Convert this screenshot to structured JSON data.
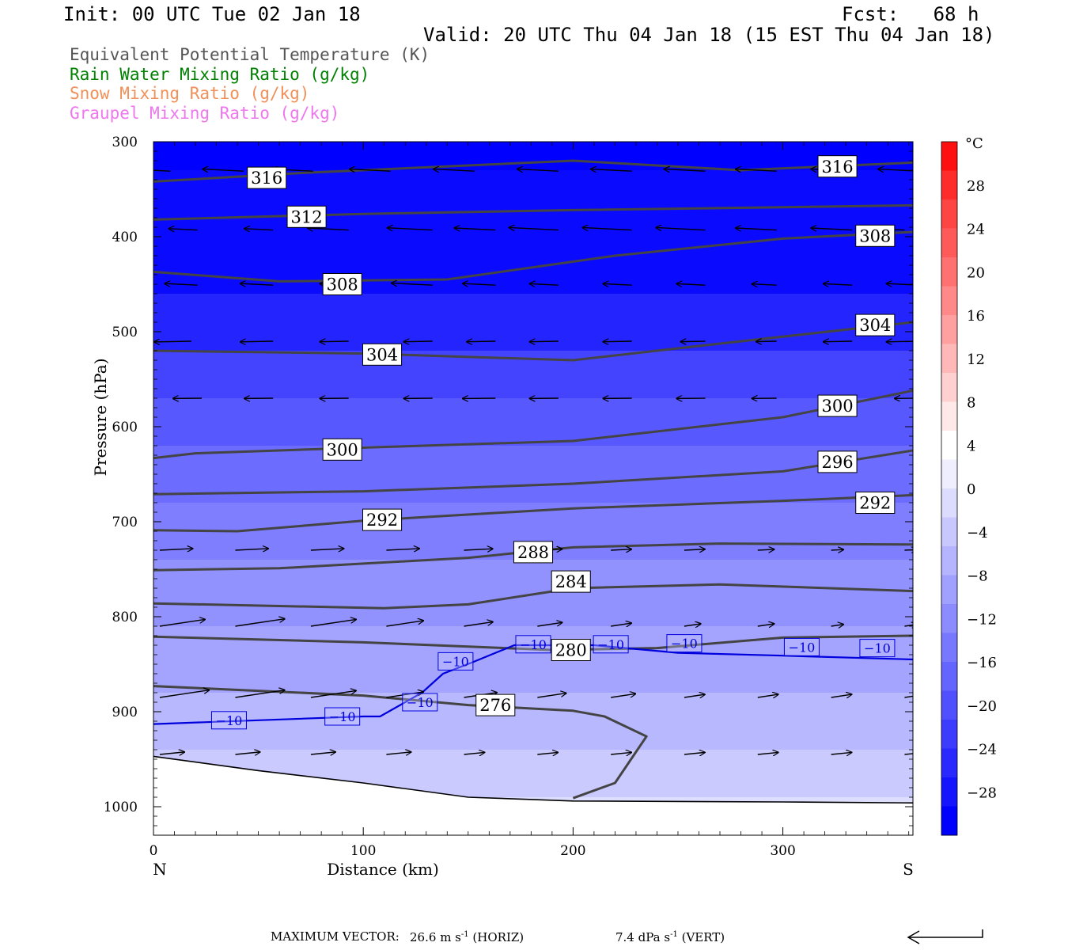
{
  "header": {
    "init": "Init: 00 UTC Tue 02 Jan 18",
    "fcst": "Fcst:   68 h",
    "valid": "Valid: 20 UTC Thu 04 Jan 18 (15 EST Thu 04 Jan 18)"
  },
  "legend": [
    {
      "label": "Equivalent Potential Temperature (K)",
      "color": "#555555"
    },
    {
      "label": "Rain Water Mixing Ratio (g/kg)",
      "color": "#008000"
    },
    {
      "label": "Snow Mixing Ratio (g/kg)",
      "color": "#f0905a"
    },
    {
      "label": "Graupel Mixing Ratio (g/kg)",
      "color": "#ee77ee"
    }
  ],
  "footer": {
    "max_vector_label": "MAXIMUM VECTOR:",
    "horiz_value": "26.6",
    "horiz_units": "m s",
    "horiz_exp": "-1",
    "horiz_tag": "(HORIZ)",
    "vert_value": "7.4",
    "vert_units": "dPa s",
    "vert_exp": "-1",
    "vert_tag": "(VERT)"
  },
  "chart_data": {
    "type": "cross-section",
    "xlabel": "Distance (km)",
    "ylabel": "Pressure (hPa)",
    "xlim": [
      0,
      362
    ],
    "ylim": [
      300,
      1030
    ],
    "y_scale": "linear, inverted",
    "x_ticks": [
      0,
      100,
      200,
      300
    ],
    "y_ticks": [
      300,
      400,
      500,
      600,
      700,
      800,
      900,
      1000
    ],
    "endpoint_left": "N",
    "endpoint_right": "S",
    "colorbar": {
      "unit": "°C",
      "tick_labels": [
        "28",
        "24",
        "20",
        "16",
        "12",
        "8",
        "4",
        "0",
        "−4",
        "−8",
        "−12",
        "−16",
        "−20",
        "−24",
        "−28"
      ],
      "colors": [
        "#ff1010",
        "#ff2c2c",
        "#ff4444",
        "#ff5a5a",
        "#ff7070",
        "#ff8888",
        "#ffa0a0",
        "#ffb8b8",
        "#ffd0d0",
        "#ffe8e8",
        "#ffffff",
        "#eeeeff",
        "#dcdcff",
        "#c8c8ff",
        "#b4b4ff",
        "#a0a0ff",
        "#8c8cff",
        "#7878ff",
        "#6464ff",
        "#5050ff",
        "#3c3cff",
        "#2828ff",
        "#1414ff",
        "#0000ff"
      ]
    },
    "temperature_fill": [
      {
        "level": 330,
        "color": "#0a0aff"
      },
      {
        "level": 460,
        "color": "#2424ff"
      },
      {
        "level": 520,
        "color": "#4444ff"
      },
      {
        "level": 570,
        "color": "#5858ff"
      },
      {
        "level": 620,
        "color": "#6c6cff"
      },
      {
        "level": 680,
        "color": "#7e7eff"
      },
      {
        "level": 740,
        "color": "#9292ff"
      },
      {
        "level": 810,
        "color": "#a4a4ff"
      },
      {
        "level": 880,
        "color": "#b8b8ff"
      },
      {
        "level": 940,
        "color": "#cacaff"
      },
      {
        "level": 990,
        "color": "#dedeff"
      }
    ],
    "theta_e_contours": [
      {
        "label": "316",
        "points": [
          [
            0,
            342
          ],
          [
            70,
            333
          ],
          [
            200,
            320
          ],
          [
            280,
            330
          ],
          [
            362,
            322
          ]
        ],
        "label_positions": [
          [
            54,
            338
          ],
          [
            326,
            326
          ]
        ]
      },
      {
        "label": "312",
        "points": [
          [
            0,
            382
          ],
          [
            100,
            376
          ],
          [
            200,
            372
          ],
          [
            300,
            369
          ],
          [
            362,
            367
          ]
        ],
        "label_positions": [
          [
            73,
            379
          ]
        ]
      },
      {
        "label": "308",
        "points": [
          [
            0,
            437
          ],
          [
            60,
            447
          ],
          [
            140,
            445
          ],
          [
            220,
            420
          ],
          [
            300,
            402
          ],
          [
            362,
            395
          ]
        ],
        "label_positions": [
          [
            90,
            450
          ],
          [
            344,
            399
          ]
        ]
      },
      {
        "label": "304",
        "points": [
          [
            0,
            520
          ],
          [
            100,
            523
          ],
          [
            200,
            530
          ],
          [
            260,
            515
          ],
          [
            362,
            490
          ]
        ],
        "label_positions": [
          [
            109,
            524
          ],
          [
            344,
            493
          ]
        ]
      },
      {
        "label": "300",
        "points": [
          [
            0,
            633
          ],
          [
            20,
            628
          ],
          [
            100,
            622
          ],
          [
            200,
            615
          ],
          [
            300,
            590
          ],
          [
            362,
            562
          ]
        ],
        "label_positions": [
          [
            90,
            624
          ],
          [
            326,
            578
          ]
        ]
      },
      {
        "label": "296",
        "points": [
          [
            0,
            671
          ],
          [
            100,
            668
          ],
          [
            200,
            660
          ],
          [
            300,
            647
          ],
          [
            362,
            625
          ]
        ],
        "label_positions": [
          [
            326,
            637
          ]
        ]
      },
      {
        "label": "292",
        "points": [
          [
            0,
            709
          ],
          [
            40,
            710
          ],
          [
            100,
            699
          ],
          [
            200,
            686
          ],
          [
            300,
            678
          ],
          [
            362,
            672
          ]
        ],
        "label_positions": [
          [
            109,
            698
          ],
          [
            344,
            680
          ]
        ]
      },
      {
        "label": "288",
        "points": [
          [
            0,
            751
          ],
          [
            60,
            749
          ],
          [
            150,
            738
          ],
          [
            200,
            727
          ],
          [
            270,
            723
          ],
          [
            362,
            724
          ]
        ],
        "label_positions": [
          [
            181,
            732
          ]
        ]
      },
      {
        "label": "284",
        "points": [
          [
            0,
            786
          ],
          [
            110,
            791
          ],
          [
            150,
            787
          ],
          [
            200,
            770
          ],
          [
            270,
            766
          ],
          [
            362,
            773
          ]
        ],
        "label_positions": [
          [
            199,
            763
          ]
        ]
      },
      {
        "label": "280",
        "points": [
          [
            0,
            821
          ],
          [
            100,
            827
          ],
          [
            190,
            835
          ],
          [
            240,
            833
          ],
          [
            300,
            822
          ],
          [
            362,
            820
          ]
        ],
        "label_positions": [
          [
            199,
            835
          ]
        ]
      },
      {
        "label": "276",
        "points": [
          [
            0,
            873
          ],
          [
            100,
            883
          ],
          [
            150,
            893
          ],
          [
            200,
            899
          ],
          [
            215,
            905
          ],
          [
            235,
            926
          ],
          [
            220,
            975
          ],
          [
            200,
            991
          ]
        ],
        "label_positions": [
          [
            163,
            893
          ]
        ]
      }
    ],
    "temperature_contours": [
      {
        "label": "−10",
        "color": "#0000dd",
        "points": [
          [
            0,
            913
          ],
          [
            50,
            909
          ],
          [
            100,
            905
          ],
          [
            108,
            905
          ],
          [
            128,
            880
          ],
          [
            138,
            860
          ],
          [
            152,
            848
          ],
          [
            172,
            830
          ],
          [
            210,
            830
          ],
          [
            250,
            838
          ],
          [
            300,
            841
          ],
          [
            362,
            845
          ]
        ],
        "label_positions": [
          [
            36,
            909
          ],
          [
            90,
            905
          ],
          [
            127,
            890
          ],
          [
            144,
            847
          ],
          [
            181,
            829
          ],
          [
            218,
            829
          ],
          [
            253,
            828
          ],
          [
            309,
            832
          ],
          [
            345,
            833
          ]
        ]
      }
    ],
    "terrain": {
      "points": [
        [
          0,
          947
        ],
        [
          50,
          962
        ],
        [
          100,
          975
        ],
        [
          150,
          990
        ],
        [
          200,
          994
        ],
        [
          300,
          995
        ],
        [
          362,
          996
        ]
      ]
    },
    "wind_vectors": [
      {
        "level": 331,
        "x": [
          5,
          40,
          73,
          110,
          150,
          190,
          225,
          260,
          294,
          330,
          362
        ],
        "u": -1,
        "w": -0.05,
        "len": [
          20,
          20,
          20,
          20,
          20,
          20,
          20,
          20,
          20,
          20,
          20
        ]
      },
      {
        "level": 393,
        "x": [
          18,
          54,
          90,
          130,
          160,
          190,
          225,
          260,
          294,
          330,
          355
        ],
        "u": -1,
        "w": -0.05,
        "len": [
          14,
          14,
          20,
          22,
          20,
          24,
          24,
          24,
          20,
          20,
          18
        ]
      },
      {
        "level": 451,
        "x": [
          18,
          54,
          90,
          130,
          160,
          190,
          225,
          260,
          294,
          330,
          362
        ],
        "u": -1,
        "w": -0.05,
        "len": [
          16,
          16,
          14,
          20,
          16,
          14,
          14,
          14,
          12,
          14,
          16
        ]
      },
      {
        "level": 510,
        "x": [
          15,
          54,
          90,
          130,
          160,
          190,
          225,
          260,
          294,
          330,
          362
        ],
        "u": -1,
        "w": 0.02,
        "len": [
          18,
          16,
          14,
          14,
          14,
          14,
          14,
          12,
          10,
          14,
          16
        ]
      },
      {
        "level": 570,
        "x": [
          20,
          54,
          90,
          130,
          160,
          190,
          225,
          260,
          294,
          330,
          362
        ],
        "u": -1,
        "w": 0.01,
        "len": [
          14,
          14,
          14,
          14,
          16,
          14,
          14,
          14,
          12,
          10,
          12
        ]
      },
      {
        "level": 730,
        "x": [
          0,
          36,
          72,
          108,
          145,
          180,
          215,
          250,
          285,
          320,
          355
        ],
        "u": 1,
        "w": -0.05,
        "len": [
          16,
          16,
          16,
          16,
          14,
          12,
          10,
          10,
          8,
          6,
          6
        ]
      },
      {
        "level": 810,
        "x": [
          0,
          36,
          72,
          108,
          145,
          180,
          215,
          250,
          285,
          320,
          355
        ],
        "u": 1,
        "w": -0.15,
        "len": [
          22,
          24,
          22,
          18,
          14,
          12,
          10,
          8,
          8,
          6,
          6
        ]
      },
      {
        "level": 885,
        "x": [
          0,
          36,
          72,
          108,
          145,
          180,
          215,
          250,
          285,
          320,
          355
        ],
        "u": 1,
        "w": -0.15,
        "len": [
          24,
          24,
          22,
          18,
          16,
          14,
          12,
          10,
          10,
          10,
          10
        ]
      },
      {
        "level": 945,
        "x": [
          0,
          36,
          72,
          108,
          145,
          180,
          215,
          250,
          285,
          320,
          355
        ],
        "u": 1,
        "w": -0.1,
        "len": [
          12,
          12,
          12,
          12,
          10,
          10,
          10,
          10,
          10,
          10,
          10
        ]
      }
    ]
  }
}
